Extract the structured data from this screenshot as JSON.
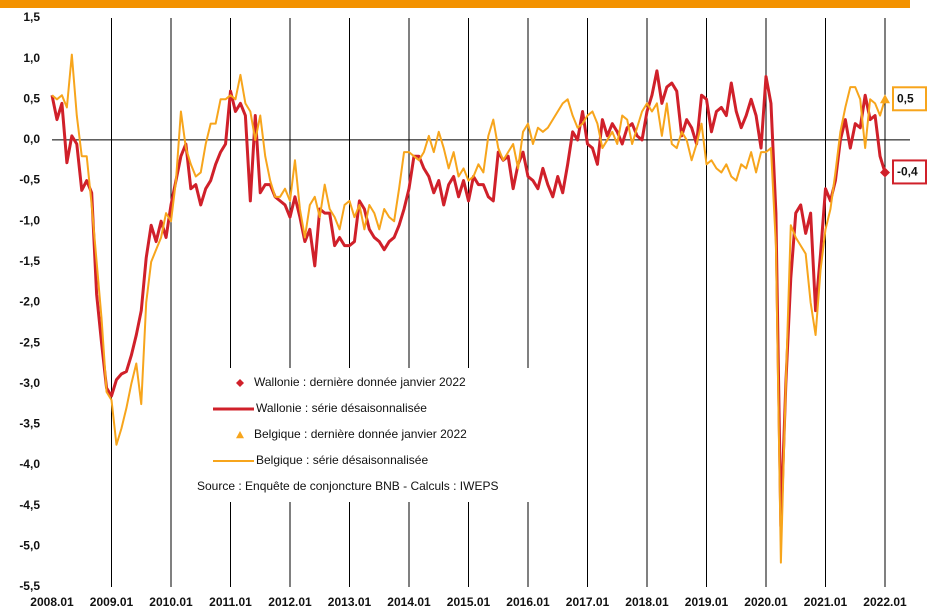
{
  "chart_data": {
    "type": "line",
    "categories": [
      "2008.01",
      null,
      null,
      null,
      null,
      null,
      null,
      null,
      null,
      null,
      null,
      null,
      "2009.01",
      null,
      null,
      null,
      null,
      null,
      null,
      null,
      null,
      null,
      null,
      null,
      "2010.01",
      null,
      null,
      null,
      null,
      null,
      null,
      null,
      null,
      null,
      null,
      null,
      "2011.01",
      null,
      null,
      null,
      null,
      null,
      null,
      null,
      null,
      null,
      null,
      null,
      "2012.01",
      null,
      null,
      null,
      null,
      null,
      null,
      null,
      null,
      null,
      null,
      null,
      "2013.01",
      null,
      null,
      null,
      null,
      null,
      null,
      null,
      null,
      null,
      null,
      null,
      "2014.01",
      null,
      null,
      null,
      null,
      null,
      null,
      null,
      null,
      null,
      null,
      null,
      "2015.01",
      null,
      null,
      null,
      null,
      null,
      null,
      null,
      null,
      null,
      null,
      null,
      "2016.01",
      null,
      null,
      null,
      null,
      null,
      null,
      null,
      null,
      null,
      null,
      null,
      "2017.01",
      null,
      null,
      null,
      null,
      null,
      null,
      null,
      null,
      null,
      null,
      null,
      "2018.01",
      null,
      null,
      null,
      null,
      null,
      null,
      null,
      null,
      null,
      null,
      null,
      "2019.01",
      null,
      null,
      null,
      null,
      null,
      null,
      null,
      null,
      null,
      null,
      null,
      "2020.01",
      null,
      null,
      null,
      null,
      null,
      null,
      null,
      null,
      null,
      null,
      null,
      "2021.01",
      null,
      null,
      null,
      null,
      null,
      null,
      null,
      null,
      null,
      null,
      null,
      "2022.01"
    ],
    "series": [
      {
        "name": "Wallonie : série désaisonnalisée",
        "color": "#d0202a",
        "values": [
          0.55,
          0.25,
          0.45,
          -0.28,
          0.05,
          -0.05,
          -0.62,
          -0.5,
          -0.65,
          -1.9,
          -2.5,
          -3.05,
          -3.15,
          -2.95,
          -2.88,
          -2.85,
          -2.65,
          -2.4,
          -2.1,
          -1.45,
          -1.05,
          -1.25,
          -1.0,
          -1.2,
          -0.8,
          -0.5,
          -0.2,
          -0.05,
          -0.6,
          -0.55,
          -0.8,
          -0.6,
          -0.5,
          -0.3,
          -0.15,
          -0.05,
          0.6,
          0.35,
          0.45,
          0.3,
          -0.75,
          0.3,
          -0.65,
          -0.55,
          -0.55,
          -0.7,
          -0.75,
          -0.8,
          -0.95,
          -0.7,
          -0.95,
          -1.25,
          -1.1,
          -1.55,
          -0.85,
          -0.9,
          -0.9,
          -1.3,
          -1.2,
          -1.3,
          -1.3,
          -1.25,
          -0.75,
          -0.85,
          -1.1,
          -1.2,
          -1.25,
          -1.35,
          -1.25,
          -1.2,
          -1.05,
          -0.85,
          -0.6,
          -0.2,
          -0.2,
          -0.35,
          -0.45,
          -0.65,
          -0.5,
          -0.8,
          -0.55,
          -0.45,
          -0.7,
          -0.5,
          -0.75,
          -0.45,
          -0.55,
          -0.55,
          -0.7,
          -0.75,
          -0.15,
          -0.25,
          -0.2,
          -0.6,
          -0.3,
          -0.15,
          -0.45,
          -0.5,
          -0.6,
          -0.35,
          -0.55,
          -0.7,
          -0.45,
          -0.65,
          -0.3,
          0.1,
          0.0,
          0.35,
          -0.05,
          -0.1,
          -0.3,
          0.25,
          0.05,
          0.2,
          0.1,
          -0.05,
          0.15,
          0.2,
          0.05,
          0.0,
          0.35,
          0.55,
          0.85,
          0.45,
          0.65,
          0.7,
          0.6,
          0.05,
          0.25,
          0.15,
          -0.05,
          0.55,
          0.5,
          0.1,
          0.35,
          0.4,
          0.3,
          0.7,
          0.35,
          0.15,
          0.3,
          0.5,
          0.3,
          -0.1,
          0.78,
          0.45,
          -0.9,
          -4.75,
          -3.0,
          -1.7,
          -0.9,
          -0.8,
          -1.15,
          -0.9,
          -2.1,
          -1.4,
          -0.6,
          -0.75,
          -0.5,
          0.0,
          0.25,
          -0.1,
          0.2,
          0.15,
          0.55,
          0.25,
          0.3,
          -0.2,
          -0.4
        ]
      },
      {
        "name": "Belgique : série désaisonnalisée",
        "color": "#f7a51c",
        "values": [
          0.55,
          0.5,
          0.55,
          0.4,
          1.05,
          0.3,
          -0.2,
          -0.2,
          -0.8,
          -1.5,
          -2.2,
          -3.1,
          -3.2,
          -3.75,
          -3.55,
          -3.3,
          -3.0,
          -2.75,
          -3.25,
          -2.0,
          -1.5,
          -1.35,
          -1.2,
          -0.9,
          -1.0,
          -0.5,
          0.35,
          -0.1,
          -0.3,
          -0.45,
          -0.4,
          -0.05,
          0.2,
          0.2,
          0.5,
          0.5,
          0.55,
          0.5,
          0.8,
          0.45,
          0.35,
          0.0,
          0.3,
          -0.2,
          -0.5,
          -0.7,
          -0.7,
          -0.6,
          -0.75,
          -0.25,
          -0.85,
          -1.2,
          -0.8,
          -0.7,
          -0.95,
          -0.55,
          -0.85,
          -0.95,
          -1.1,
          -0.8,
          -0.75,
          -0.95,
          -0.8,
          -1.1,
          -0.8,
          -0.9,
          -1.1,
          -0.85,
          -0.95,
          -1.0,
          -0.6,
          -0.15,
          -0.15,
          -0.2,
          -0.25,
          -0.15,
          0.05,
          -0.15,
          0.1,
          -0.1,
          -0.35,
          -0.15,
          -0.45,
          -0.35,
          -0.5,
          -0.45,
          -0.3,
          -0.4,
          0.05,
          0.25,
          -0.1,
          -0.25,
          -0.15,
          -0.05,
          -0.35,
          0.1,
          0.2,
          -0.05,
          0.15,
          0.1,
          0.15,
          0.25,
          0.35,
          0.45,
          0.5,
          0.3,
          0.15,
          0.2,
          0.3,
          0.35,
          0.2,
          -0.1,
          0.0,
          0.1,
          -0.05,
          0.3,
          0.25,
          -0.05,
          0.15,
          0.35,
          0.45,
          0.35,
          0.45,
          0.05,
          0.45,
          -0.05,
          -0.1,
          0.1,
          0.0,
          -0.25,
          -0.05,
          0.2,
          -0.3,
          -0.25,
          -0.35,
          -0.4,
          -0.3,
          -0.45,
          -0.5,
          -0.3,
          -0.35,
          -0.15,
          -0.4,
          -0.15,
          -0.15,
          -0.1,
          -1.3,
          -5.2,
          -3.0,
          -1.05,
          -1.2,
          -1.3,
          -1.4,
          -2.0,
          -2.4,
          -1.6,
          -1.1,
          -0.85,
          -0.4,
          0.1,
          0.4,
          0.65,
          0.65,
          0.5,
          -0.1,
          0.5,
          0.45,
          0.3,
          0.5
        ]
      }
    ],
    "last_points": [
      {
        "name": "Wallonie : dernière donnée janvier 2022",
        "color": "#d0202a",
        "marker": "diamond",
        "value": -0.4,
        "value_label": "-0,4"
      },
      {
        "name": "Belgique : dernière donnée janvier 2022",
        "color": "#f7a51c",
        "marker": "triangle",
        "value": 0.5,
        "value_label": "0,5"
      }
    ],
    "legend_order": [
      "last_points.0",
      "series.0",
      "last_points.1",
      "series.1"
    ],
    "annotation": "Source : Enquête de conjoncture BNB - Calculs : IWEPS",
    "ylim": [
      -5.5,
      1.5
    ],
    "yticks": [
      {
        "value": 1.5,
        "label": "1,5"
      },
      {
        "value": 1,
        "label": "1,0"
      },
      {
        "value": 0.5,
        "label": "0,5"
      },
      {
        "value": 0,
        "label": "0,0"
      },
      {
        "value": -0.5,
        "label": "-0,5"
      },
      {
        "value": -1,
        "label": "-1,0"
      },
      {
        "value": -1.5,
        "label": "-1,5"
      },
      {
        "value": -2,
        "label": "-2,0"
      },
      {
        "value": -2.5,
        "label": "-2,5"
      },
      {
        "value": -3,
        "label": "-3,0"
      },
      {
        "value": -3.5,
        "label": "-3,5"
      },
      {
        "value": -4,
        "label": "-4,0"
      },
      {
        "value": -4.5,
        "label": "-4,5"
      },
      {
        "value": -5,
        "label": "-5,0"
      },
      {
        "value": -5.5,
        "label": "-5,5"
      }
    ],
    "zero_line": true,
    "vertical_grid": true
  }
}
